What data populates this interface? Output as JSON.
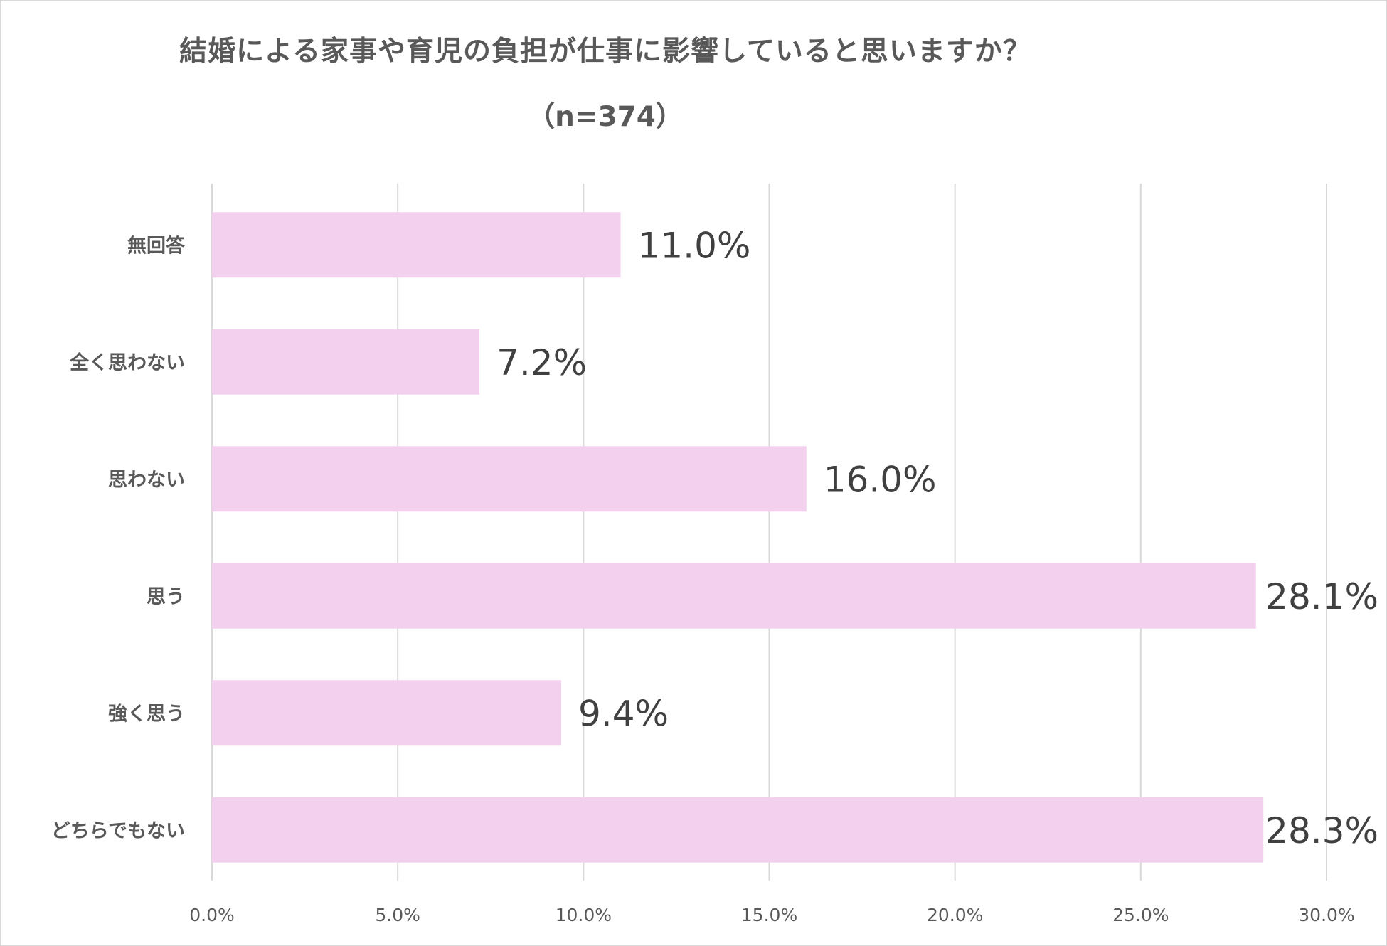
{
  "chart_data": {
    "type": "bar",
    "orientation": "horizontal",
    "title": "結婚による家事や育児の負担が仕事に影響していると思いますか？",
    "subtitle": "（n=374）",
    "categories": [
      "無回答",
      "全く思わない",
      "思わない",
      "思う",
      "強く思う",
      "どちらでもない"
    ],
    "values": [
      11.0,
      7.2,
      16.0,
      28.1,
      9.4,
      28.3
    ],
    "data_labels": [
      "11.0%",
      "7.2%",
      "16.0%",
      "28.1%",
      "9.4%",
      "28.3%"
    ],
    "xlim": [
      0,
      30
    ],
    "xticks": [
      0,
      5,
      10,
      15,
      20,
      25,
      30
    ],
    "xtick_labels": [
      "0.0%",
      "5.0%",
      "10.0%",
      "15.0%",
      "20.0%",
      "25.0%",
      "30.0%"
    ],
    "xlabel": "",
    "ylabel": "",
    "grid": "vertical",
    "legend": "none",
    "bar_color": "#f2d0ee",
    "grid_color": "#d9d9d9"
  }
}
